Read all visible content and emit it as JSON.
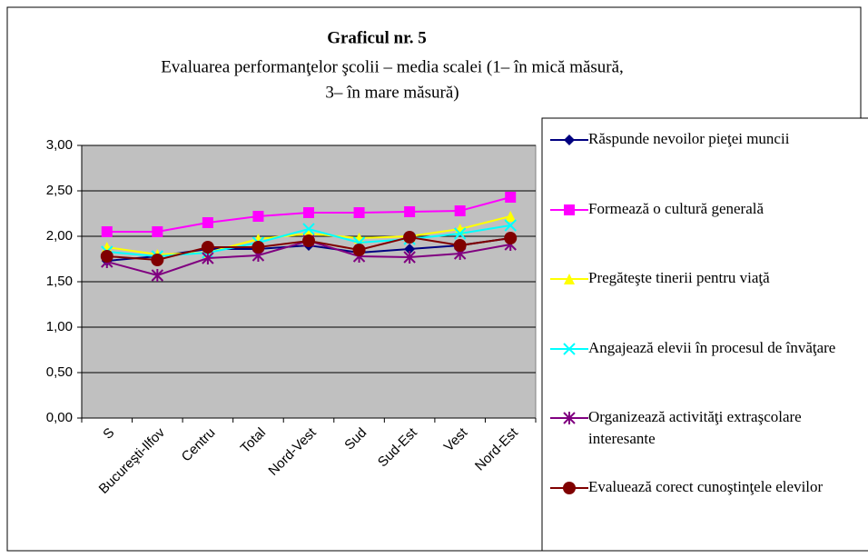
{
  "chart_data": {
    "type": "line",
    "title": "Graficul nr. 5",
    "subtitle": [
      "Evaluarea performanţelor şcolii – media scalei (1– în mică măsură,",
      "3– în mare măsură)"
    ],
    "categories": [
      "S",
      "Bucureşti-Ilfov",
      "Centru",
      "Total",
      "Nord-Vest",
      "Sud",
      "Sud-Est",
      "Vest",
      "Nord-Est"
    ],
    "ylim": [
      0,
      3
    ],
    "yticks": [
      {
        "value": 0,
        "label": "0,00"
      },
      {
        "value": 0.5,
        "label": "0,50"
      },
      {
        "value": 1,
        "label": "1,00"
      },
      {
        "value": 1.5,
        "label": "1,50"
      },
      {
        "value": 2,
        "label": "2,00"
      },
      {
        "value": 2.5,
        "label": "2,50"
      },
      {
        "value": 3,
        "label": "3,00"
      }
    ],
    "grid": true,
    "plot_background": "#c0c0c0",
    "legend": "right",
    "series": [
      {
        "name": "Răspunde nevoilor pieţei muncii",
        "color": "#000080",
        "marker": "diamond",
        "values": [
          1.73,
          1.78,
          1.86,
          1.86,
          1.9,
          1.82,
          1.86,
          1.9,
          1.98
        ]
      },
      {
        "name": "Formează o cultură generală",
        "color": "#ff00ff",
        "marker": "square",
        "values": [
          2.05,
          2.05,
          2.15,
          2.22,
          2.26,
          2.26,
          2.27,
          2.28,
          2.43
        ]
      },
      {
        "name": "Pregăteşte tinerii pentru viaţă",
        "color": "#ffff00",
        "marker": "triangle",
        "values": [
          1.88,
          1.8,
          1.82,
          1.97,
          2.03,
          1.98,
          2.0,
          2.08,
          2.22
        ]
      },
      {
        "name": "Angajează elevii în procesul de învăţare",
        "color": "#00ffff",
        "marker": "x",
        "values": [
          1.83,
          1.78,
          1.82,
          1.93,
          2.08,
          1.93,
          1.97,
          2.03,
          2.12
        ]
      },
      {
        "name": "Organizează activităţi extraşcolare interesante",
        "color": "#800080",
        "marker": "star",
        "values": [
          1.72,
          1.57,
          1.76,
          1.79,
          1.95,
          1.78,
          1.77,
          1.81,
          1.91
        ]
      },
      {
        "name": "Evaluează corect cunoştinţele elevilor",
        "color": "#800000",
        "marker": "circle",
        "values": [
          1.78,
          1.74,
          1.88,
          1.88,
          1.95,
          1.85,
          1.99,
          1.9,
          1.98
        ]
      }
    ]
  }
}
